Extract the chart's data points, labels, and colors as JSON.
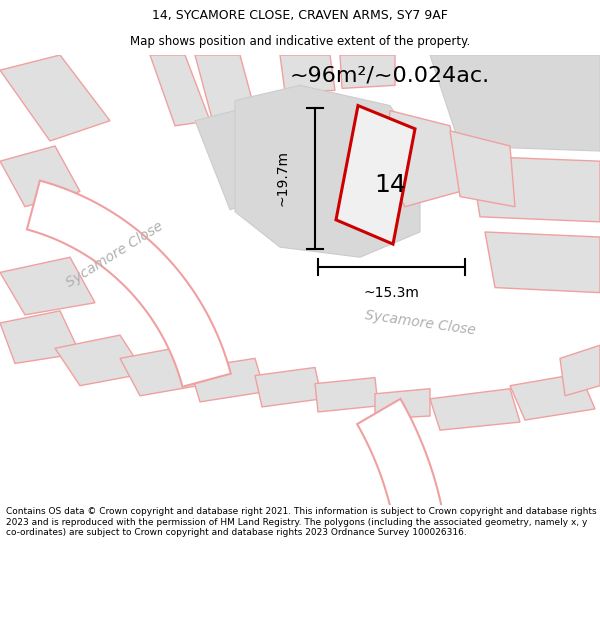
{
  "title_line1": "14, SYCAMORE CLOSE, CRAVEN ARMS, SY7 9AF",
  "title_line2": "Map shows position and indicative extent of the property.",
  "area_text": "~96m²/~0.024ac.",
  "label_14": "14",
  "dim_width": "~15.3m",
  "dim_height": "~19.7m",
  "road_label_left": "Sycamore Close",
  "road_label_bottom": "Sycamore Close",
  "footer": "Contains OS data © Crown copyright and database right 2021. This information is subject to Crown copyright and database rights 2023 and is reproduced with the permission of HM Land Registry. The polygons (including the associated geometry, namely x, y co-ordinates) are subject to Crown copyright and database rights 2023 Ordnance Survey 100026316.",
  "bg_color": "#ffffff",
  "plot_fill": "#e0e0e0",
  "plot_fill2": "#d8d8d8",
  "road_ec": "#f0a0a0",
  "highlight_color": "#cc0000",
  "gray_ec": "#cccccc",
  "road_label_color": "#b0b0b0",
  "dim_line_color": "#000000",
  "text_color": "#000000",
  "title_fontsize": 9,
  "subtitle_fontsize": 8.5,
  "area_fontsize": 16,
  "label_fontsize": 18,
  "dim_fontsize": 10,
  "road_label_fontsize": 10,
  "footer_fontsize": 6.5
}
